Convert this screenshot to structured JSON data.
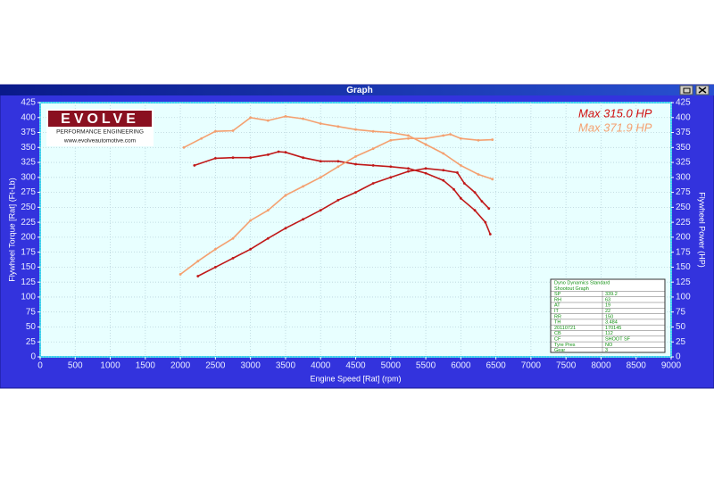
{
  "window": {
    "title": "Graph"
  },
  "logo": {
    "brand": "EVOLVE",
    "tagline": "PERFORMANCE ENGINEERING",
    "url": "www.evolveautomotive.com"
  },
  "info_table": {
    "title": [
      "Dyno Dynamics Standard",
      "Shootout Graph"
    ],
    "rows": [
      [
        "SP",
        "339.2"
      ],
      [
        "RH",
        "63"
      ],
      [
        "AT",
        "19"
      ],
      [
        "IT",
        "22"
      ],
      [
        "RR",
        "150"
      ],
      [
        "TH",
        "3.484"
      ],
      [
        "20110721",
        "170145"
      ],
      [
        "CB",
        "112"
      ],
      [
        "CF",
        "SHOOT SF"
      ],
      [
        "Tyre Pres",
        "NO"
      ],
      [
        "Gear",
        "3"
      ]
    ]
  },
  "chart_data": {
    "type": "line",
    "x_label": "Engine Speed [Rat] (rpm)",
    "y_label": "Flywheel Torque [Rat] (Ft-Lb)",
    "y2_label": "Flywheel Power (HP)",
    "xlim": [
      0,
      9000
    ],
    "ylim": [
      0,
      425
    ],
    "y2lim": [
      0,
      425
    ],
    "xticks": [
      0,
      500,
      1000,
      1500,
      2000,
      2500,
      3000,
      3500,
      4000,
      4500,
      5000,
      5500,
      6000,
      6500,
      7000,
      7500,
      8000,
      8500,
      9000
    ],
    "yticks": [
      0,
      25,
      50,
      75,
      100,
      125,
      150,
      175,
      200,
      225,
      250,
      275,
      300,
      325,
      350,
      375,
      400,
      425
    ],
    "y2ticks": [
      0,
      25,
      50,
      75,
      100,
      125,
      150,
      175,
      200,
      225,
      250,
      275,
      300,
      325,
      350,
      375,
      400,
      425
    ],
    "grid": true,
    "legend_entries": [
      {
        "text": "Max 315.0 HP",
        "color": "#d01010"
      },
      {
        "text": "Max 371.9 HP",
        "color": "#f4a070"
      }
    ],
    "series": [
      {
        "color": "#f4a070",
        "axis": "y",
        "x": [
          2050,
          2300,
          2500,
          2750,
          3000,
          3250,
          3500,
          3750,
          4000,
          4250,
          4500,
          4750,
          5000,
          5250,
          5500,
          5750,
          6000,
          6250,
          6450
        ],
        "values": [
          350,
          365,
          377,
          378,
          400,
          395,
          402,
          398,
          390,
          385,
          380,
          377,
          375,
          370,
          355,
          340,
          320,
          305,
          297
        ]
      },
      {
        "color": "#c01818",
        "axis": "y",
        "x": [
          2200,
          2500,
          2750,
          3000,
          3250,
          3400,
          3500,
          3750,
          4000,
          4250,
          4500,
          4750,
          5000,
          5250,
          5500,
          5750,
          5900,
          6000,
          6200,
          6350,
          6420
        ],
        "values": [
          320,
          332,
          333,
          333,
          338,
          343,
          342,
          333,
          327,
          327,
          322,
          320,
          318,
          315,
          307,
          295,
          280,
          265,
          245,
          225,
          205
        ]
      },
      {
        "color": "#c01818",
        "axis": "y2",
        "x": [
          2250,
          2500,
          2750,
          3000,
          3250,
          3500,
          3750,
          4000,
          4250,
          4500,
          4750,
          5000,
          5250,
          5500,
          5750,
          5950,
          6050,
          6200,
          6300,
          6400
        ],
        "values": [
          135,
          150,
          165,
          180,
          198,
          215,
          230,
          245,
          262,
          275,
          290,
          300,
          310,
          315,
          312,
          308,
          290,
          275,
          260,
          248
        ]
      },
      {
        "color": "#f4a070",
        "axis": "y2",
        "x": [
          2000,
          2250,
          2500,
          2750,
          3000,
          3250,
          3500,
          3750,
          4000,
          4250,
          4500,
          4750,
          5000,
          5250,
          5500,
          5750,
          5850,
          6000,
          6250,
          6450
        ],
        "values": [
          138,
          160,
          180,
          198,
          228,
          245,
          270,
          285,
          300,
          318,
          335,
          348,
          362,
          365,
          365,
          370,
          372,
          365,
          362,
          363
        ]
      }
    ]
  }
}
